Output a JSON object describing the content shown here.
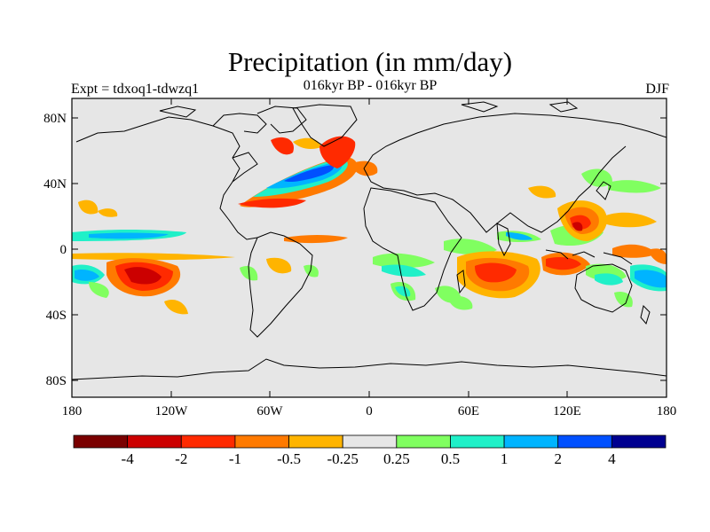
{
  "title": "Precipitation (in mm/day)",
  "subtitle": "016kyr BP - 016kyr BP",
  "experiment_label": "Expt = tdxoq1-tdwzq1",
  "season_label": "DJF",
  "latitude_ticks": [
    "80N",
    "40N",
    "0",
    "40S",
    "80S"
  ],
  "longitude_ticks": [
    "180",
    "120W",
    "60W",
    "0",
    "60E",
    "120E",
    "180"
  ],
  "colorbar": {
    "colors": [
      "#7a0000",
      "#cc0000",
      "#ff2a00",
      "#ff7a00",
      "#ffb400",
      "#e6e6e6",
      "#80ff60",
      "#20f0c8",
      "#00b4ff",
      "#0050ff",
      "#000090"
    ],
    "labels": [
      "-4",
      "-2",
      "-1",
      "-0.5",
      "-0.25",
      "0.25",
      "0.5",
      "1",
      "2",
      "4"
    ]
  },
  "colors": {
    "ocean_background": "#e6e6e6",
    "coastline": "#000000"
  }
}
